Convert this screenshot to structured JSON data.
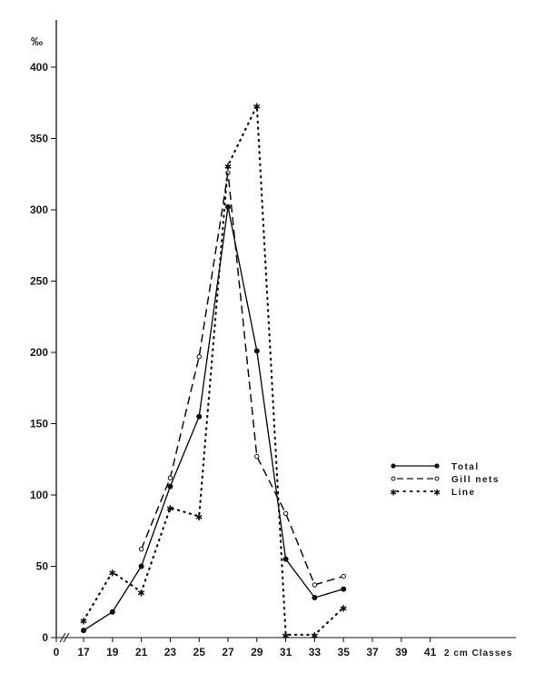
{
  "chart_data": {
    "type": "line",
    "title": "",
    "xlabel": "2 cm Classes",
    "ylabel": "‰",
    "ylim": [
      0,
      400
    ],
    "y_ticks": [
      0,
      50,
      100,
      150,
      200,
      250,
      300,
      350,
      400
    ],
    "x_ticks": [
      "0",
      "17",
      "19",
      "21",
      "23",
      "25",
      "27",
      "29",
      "31",
      "33",
      "35",
      "37",
      "39",
      "41"
    ],
    "axis_break": "//",
    "grid": false,
    "legend_position": "right-middle",
    "x": [
      17,
      19,
      21,
      23,
      25,
      27,
      29,
      31,
      33,
      35
    ],
    "series": [
      {
        "name": "Total",
        "style": "solid",
        "marker": "filled-circle",
        "x": [
          17,
          19,
          21,
          23,
          25,
          27,
          29,
          31,
          33,
          35
        ],
        "values": [
          5,
          18,
          50,
          106,
          155,
          302,
          201,
          55,
          28,
          34
        ]
      },
      {
        "name": "Gill nets",
        "style": "dashed",
        "marker": "open-circle",
        "x": [
          21,
          23,
          25,
          27,
          29,
          31,
          33,
          35
        ],
        "values": [
          62,
          112,
          197,
          326,
          127,
          87,
          37,
          43
        ]
      },
      {
        "name": "Line",
        "style": "dotted",
        "marker": "star",
        "x": [
          17,
          19,
          21,
          23,
          25,
          27,
          29,
          31,
          33,
          35
        ],
        "values": [
          12,
          46,
          32,
          91,
          85,
          331,
          373,
          2,
          2,
          21
        ]
      }
    ]
  },
  "axes": {
    "y_unit": "‰",
    "x_title": "2 cm Classes",
    "y_tick_labels": [
      "0",
      "50",
      "100",
      "150",
      "200",
      "250",
      "300",
      "350",
      "400"
    ],
    "x_tick_labels": [
      "0",
      "17",
      "19",
      "21",
      "23",
      "25",
      "27",
      "29",
      "31",
      "33",
      "35",
      "37",
      "39",
      "41"
    ]
  },
  "legend": {
    "items": [
      {
        "label": "Total"
      },
      {
        "label": "Gill nets"
      },
      {
        "label": "Line"
      }
    ]
  }
}
